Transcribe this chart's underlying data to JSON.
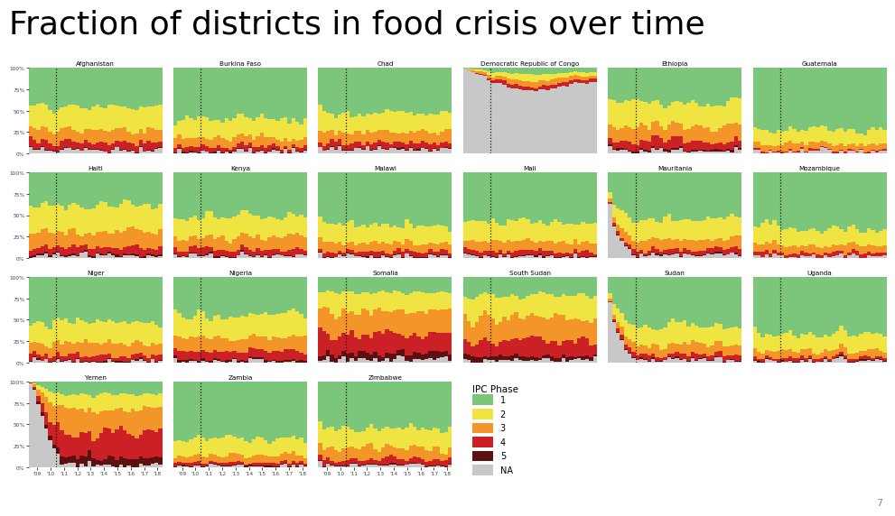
{
  "title": "Fraction of districts in food crisis over time",
  "title_fontsize": 26,
  "title_font": "sans-serif",
  "ipc_colors": {
    "1": "#7BC67A",
    "2": "#F0E442",
    "3": "#F4952A",
    "4": "#CC2027",
    "5": "#5C1010",
    "NA": "#C8C8C8"
  },
  "countries": [
    "Afghanistan",
    "Burkina Faso",
    "Chad",
    "Democratic Republic of Congo",
    "Ethiopia",
    "Guatemala",
    "Haiti",
    "Kenya",
    "Malawi",
    "Mali",
    "Mauritania",
    "Mozambique",
    "Niger",
    "Nigeria",
    "Somalia",
    "South Sudan",
    "Sudan",
    "Uganda",
    "Yemen",
    "Zambia",
    "Zimbabwe"
  ],
  "background_color": "#FFFFFF",
  "panel_rows": 4,
  "panel_cols": 6,
  "page_number": "7",
  "n_bars": 34,
  "dotted_bar_idx": 7
}
